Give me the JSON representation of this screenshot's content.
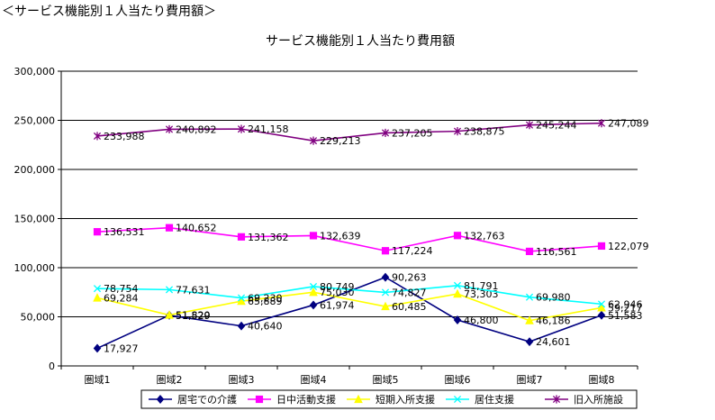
{
  "page": {
    "heading": "＜サービス機能別１人当たり費用額＞"
  },
  "chart_data": {
    "type": "line",
    "title": "サービス機能別１人当たり費用額",
    "categories": [
      "圏域1",
      "圏域2",
      "圏域3",
      "圏域4",
      "圏域5",
      "圏域6",
      "圏域7",
      "圏域8"
    ],
    "ylim": [
      0,
      300000
    ],
    "yticks": [
      0,
      50000,
      100000,
      150000,
      200000,
      250000,
      300000
    ],
    "ytick_labels": [
      "0",
      "50,000",
      "100,000",
      "150,000",
      "200,000",
      "250,000",
      "300,000"
    ],
    "xlabel": "",
    "ylabel": "",
    "legend_position": "bottom",
    "series": [
      {
        "name": "居宅での介護",
        "color": "#000080",
        "marker": "diamond",
        "values": [
          17927,
          51529,
          40640,
          61974,
          90263,
          46800,
          24601,
          51583
        ],
        "labels": [
          "17,927",
          "51,529",
          "40,640",
          "61,974",
          "90,263",
          "46,800",
          "24,601",
          "51,583"
        ]
      },
      {
        "name": "日中活動支援",
        "color": "#ff00ff",
        "marker": "square",
        "values": [
          136531,
          140652,
          131362,
          132639,
          117224,
          132763,
          116561,
          122079
        ],
        "labels": [
          "136,531",
          "140,652",
          "131,362",
          "132,639",
          "117,224",
          "132,763",
          "116,561",
          "122,079"
        ]
      },
      {
        "name": "短期入所支援",
        "color": "#ffff00",
        "marker": "triangle",
        "values": [
          69284,
          51820,
          65889,
          75030,
          60485,
          73303,
          46186,
          59217
        ],
        "labels": [
          "69,284",
          "51,820",
          "65,889",
          "75,030",
          "60,485",
          "73,303",
          "46,186",
          "59,217"
        ]
      },
      {
        "name": "居住支援",
        "color": "#00ffff",
        "marker": "x",
        "values": [
          78754,
          77631,
          69230,
          80749,
          74827,
          81791,
          69980,
          62946
        ],
        "labels": [
          "78,754",
          "77,631",
          "69,230",
          "80,749",
          "74,827",
          "81,791",
          "69,980",
          "62,946"
        ]
      },
      {
        "name": "旧入所施設",
        "color": "#800080",
        "marker": "star",
        "values": [
          233988,
          240892,
          241158,
          229213,
          237205,
          238875,
          245244,
          247089
        ],
        "labels": [
          "233,988",
          "240,892",
          "241,158",
          "229,213",
          "237,205",
          "238,875",
          "245,244",
          "247,089"
        ]
      }
    ]
  }
}
